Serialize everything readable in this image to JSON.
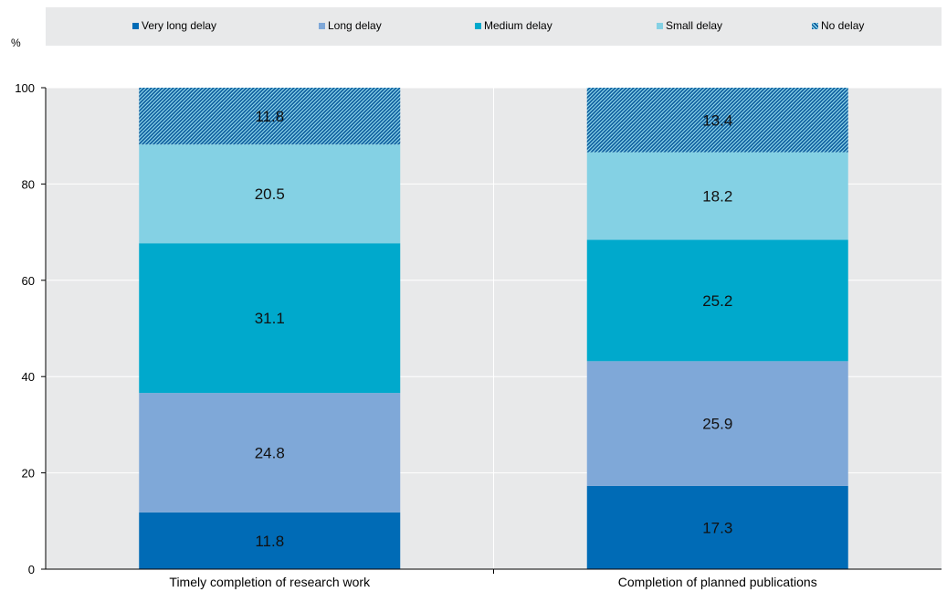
{
  "chart_data": {
    "type": "bar",
    "stacked": true,
    "categories": [
      "Timely completion of research work",
      "Completion of planned publications"
    ],
    "series": [
      {
        "name": "Very long delay",
        "values": [
          11.8,
          17.3
        ],
        "color": "#006bb6"
      },
      {
        "name": "Long delay",
        "values": [
          24.8,
          25.9
        ],
        "color": "#7fa8d8"
      },
      {
        "name": "Medium delay",
        "values": [
          31.1,
          25.2
        ],
        "color": "#00a9cc"
      },
      {
        "name": "Small delay",
        "values": [
          20.5,
          18.2
        ],
        "color": "#84d1e4"
      },
      {
        "name": "No delay",
        "values": [
          11.8,
          13.4
        ],
        "color": "#00a9cc",
        "pattern": "hatched"
      }
    ],
    "ylabel": "%",
    "ylim": [
      0,
      100
    ],
    "yticks": [
      0,
      20,
      40,
      60,
      80,
      100
    ],
    "grid": true,
    "legend": "top",
    "plot_background": "#e8e9ea"
  }
}
